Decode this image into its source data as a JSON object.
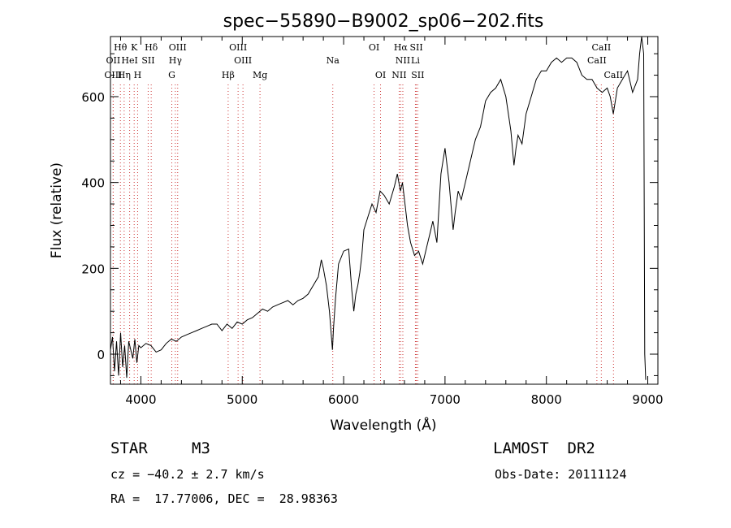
{
  "chart_data": {
    "type": "line",
    "title": "spec−55890−B9002_sp06−202.fits",
    "xlabel": "Wavelength (Å)",
    "ylabel": "Flux (relative)",
    "xlim": [
      3700,
      9100
    ],
    "ylim": [
      -70,
      740
    ],
    "x_ticks": [
      4000,
      5000,
      6000,
      7000,
      8000,
      9000
    ],
    "y_ticks": [
      0,
      200,
      400,
      600
    ],
    "line_color": "#000000",
    "marker_color": "#cc3333",
    "spectral_lines": [
      {
        "label": "Hθ",
        "wavelength": 3798,
        "row": 1
      },
      {
        "label": "K",
        "wavelength": 3934,
        "row": 1
      },
      {
        "label": "Hδ",
        "wavelength": 4102,
        "row": 1
      },
      {
        "label": "OIII",
        "wavelength": 4363,
        "row": 1
      },
      {
        "label": "OIII",
        "wavelength": 4959,
        "row": 1
      },
      {
        "label": "OI",
        "wavelength": 6300,
        "row": 1
      },
      {
        "label": "Hα",
        "wavelength": 6563,
        "row": 1
      },
      {
        "label": "SII",
        "wavelength": 6717,
        "row": 1
      },
      {
        "label": "CaII",
        "wavelength": 8542,
        "row": 1
      },
      {
        "label": "OII",
        "wavelength": 3727,
        "row": 2
      },
      {
        "label": "HeI",
        "wavelength": 3889,
        "row": 2
      },
      {
        "label": "SII",
        "wavelength": 4072,
        "row": 2
      },
      {
        "label": "Hγ",
        "wavelength": 4340,
        "row": 2
      },
      {
        "label": "OIII",
        "wavelength": 5007,
        "row": 2
      },
      {
        "label": "Na",
        "wavelength": 5893,
        "row": 2
      },
      {
        "label": "NII",
        "wavelength": 6584,
        "row": 2
      },
      {
        "label": "Li",
        "wavelength": 6708,
        "row": 2
      },
      {
        "label": "CaII",
        "wavelength": 8498,
        "row": 2
      },
      {
        "label": "OIII",
        "wavelength": 3727,
        "row": 3
      },
      {
        "label": "Hη",
        "wavelength": 3835,
        "row": 3
      },
      {
        "label": "H",
        "wavelength": 3968,
        "row": 3
      },
      {
        "label": "G",
        "wavelength": 4305,
        "row": 3
      },
      {
        "label": "Hβ",
        "wavelength": 4861,
        "row": 3
      },
      {
        "label": "Mg",
        "wavelength": 5175,
        "row": 3
      },
      {
        "label": "OI",
        "wavelength": 6364,
        "row": 3
      },
      {
        "label": "NII",
        "wavelength": 6548,
        "row": 3
      },
      {
        "label": "SII",
        "wavelength": 6731,
        "row": 3
      },
      {
        "label": "CaII",
        "wavelength": 8662,
        "row": 3
      }
    ],
    "x": [
      3700,
      3720,
      3740,
      3760,
      3780,
      3800,
      3820,
      3840,
      3860,
      3880,
      3900,
      3920,
      3940,
      3960,
      3980,
      4000,
      4050,
      4100,
      4150,
      4200,
      4250,
      4300,
      4350,
      4400,
      4450,
      4500,
      4550,
      4600,
      4650,
      4700,
      4750,
      4800,
      4850,
      4900,
      4950,
      5000,
      5050,
      5100,
      5150,
      5200,
      5250,
      5300,
      5350,
      5400,
      5450,
      5500,
      5550,
      5600,
      5650,
      5700,
      5750,
      5780,
      5800,
      5830,
      5860,
      5890,
      5900,
      5920,
      5950,
      6000,
      6050,
      6080,
      6100,
      6120,
      6140,
      6160,
      6180,
      6200,
      6240,
      6280,
      6320,
      6360,
      6400,
      6450,
      6500,
      6530,
      6560,
      6580,
      6600,
      6630,
      6660,
      6700,
      6740,
      6780,
      6800,
      6820,
      6850,
      6880,
      6920,
      6960,
      7000,
      7040,
      7080,
      7100,
      7130,
      7160,
      7200,
      7250,
      7300,
      7350,
      7400,
      7450,
      7500,
      7550,
      7600,
      7650,
      7680,
      7700,
      7720,
      7760,
      7800,
      7850,
      7900,
      7950,
      8000,
      8050,
      8100,
      8150,
      8200,
      8250,
      8300,
      8350,
      8400,
      8450,
      8500,
      8550,
      8600,
      8630,
      8660,
      8700,
      8750,
      8800,
      8850,
      8900,
      8920,
      8940,
      8960,
      8970,
      8980
    ],
    "y": [
      10,
      40,
      -40,
      30,
      -50,
      50,
      -30,
      20,
      -55,
      30,
      10,
      -10,
      35,
      -20,
      20,
      15,
      25,
      20,
      5,
      10,
      25,
      35,
      30,
      40,
      45,
      50,
      55,
      60,
      65,
      70,
      70,
      55,
      70,
      60,
      75,
      70,
      80,
      85,
      95,
      105,
      100,
      110,
      115,
      120,
      125,
      115,
      125,
      130,
      140,
      160,
      180,
      220,
      200,
      160,
      100,
      10,
      60,
      130,
      210,
      240,
      245,
      150,
      100,
      140,
      160,
      190,
      230,
      290,
      320,
      350,
      330,
      380,
      370,
      350,
      390,
      420,
      380,
      400,
      360,
      300,
      260,
      230,
      240,
      210,
      230,
      250,
      280,
      310,
      260,
      420,
      480,
      400,
      290,
      330,
      380,
      360,
      400,
      450,
      500,
      530,
      590,
      610,
      620,
      640,
      600,
      520,
      440,
      480,
      510,
      490,
      560,
      600,
      640,
      660,
      660,
      680,
      690,
      680,
      690,
      690,
      680,
      650,
      640,
      640,
      620,
      610,
      620,
      600,
      560,
      620,
      640,
      660,
      610,
      640,
      700,
      740,
      700,
      0,
      -60
    ]
  },
  "footer": {
    "object_type": "STAR",
    "subclass": "M3",
    "survey": "LAMOST  DR2",
    "cz": "cz = −40.2 ± 2.7 km/s",
    "obs_date": "Obs-Date: 20111124",
    "coords": "RA =  17.77006, DEC =  28.98363"
  }
}
